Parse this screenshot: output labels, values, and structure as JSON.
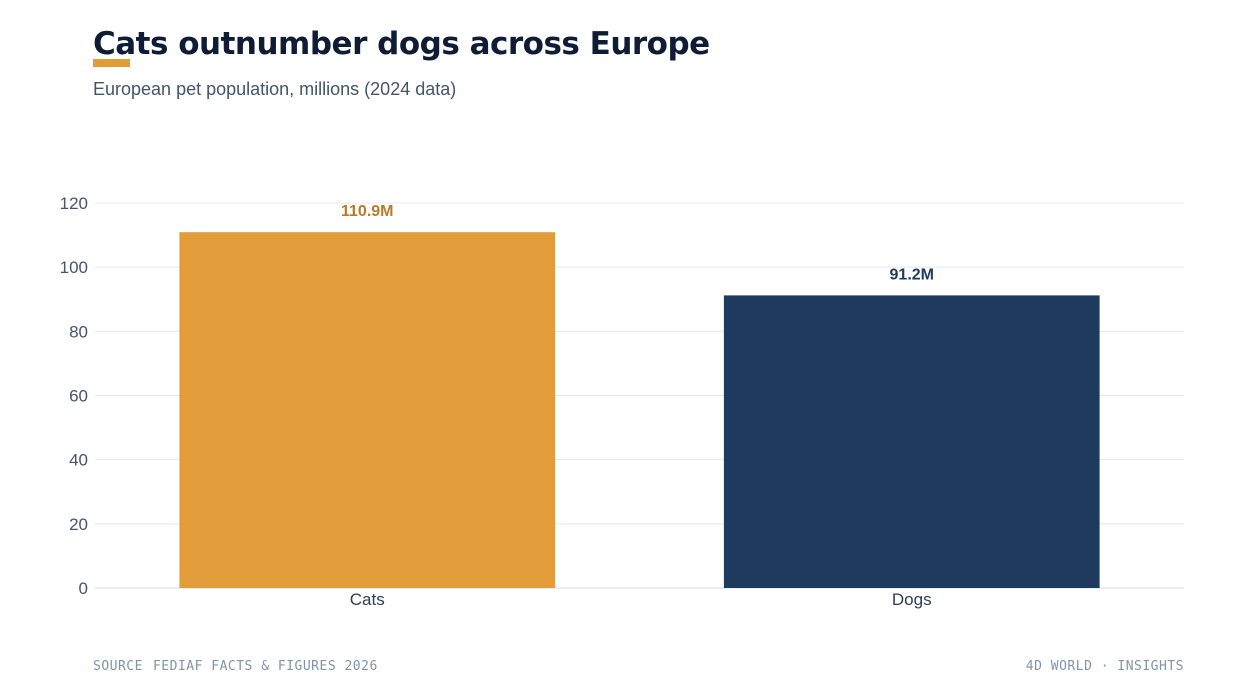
{
  "header": {
    "title": "Cats outnumber dogs across Europe",
    "subtitle": "European pet population, millions (2024 data)"
  },
  "footer": {
    "source_label": "SOURCE",
    "source_text": "FEDIAF FACTS & FIGURES 2026",
    "brand": "4D WORLD · INSIGHTS"
  },
  "colors": {
    "accent": "#e39c3a",
    "cats": "#e39c3a",
    "dogs": "#1e3a5f",
    "cats_label": "#b8792a",
    "dogs_label": "#1e3a5f",
    "grid": "#e4e8ee"
  },
  "chart_data": {
    "type": "bar",
    "title": "Cats outnumber dogs across Europe",
    "subtitle": "European pet population, millions (2024 data)",
    "categories": [
      "Cats",
      "Dogs"
    ],
    "values": [
      110.9,
      91.2
    ],
    "value_labels": [
      "110.9M",
      "91.2M"
    ],
    "yticks": [
      0,
      20,
      40,
      60,
      80,
      100,
      120
    ],
    "ylim": [
      0,
      120
    ],
    "grid": true,
    "legend": "none"
  }
}
